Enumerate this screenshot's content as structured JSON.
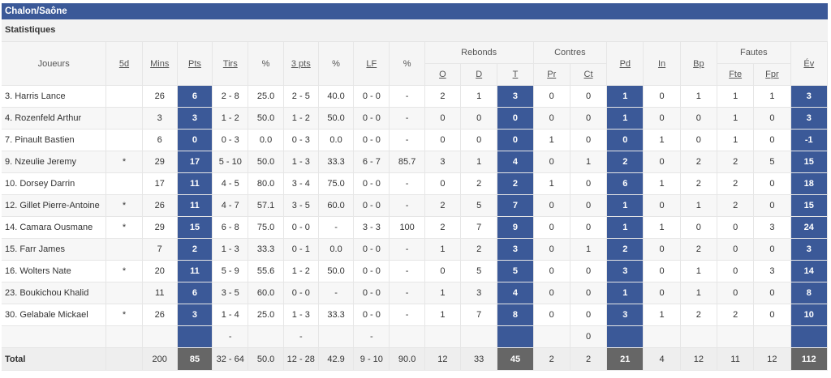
{
  "team": "Chalon/Saône",
  "section": "Statistiques",
  "headers": {
    "joueurs": "Joueurs",
    "5d": "5d",
    "mins": "Mins",
    "pts": "Pts",
    "tirs": "Tirs",
    "pct1": "%",
    "pts3": "3 pts",
    "pct2": "%",
    "lf": "LF",
    "pct3": "%",
    "rebonds": "Rebonds",
    "o": "O",
    "d": "D",
    "t": "T",
    "contres": "Contres",
    "pr": "Pr",
    "ct": "Ct",
    "pd": "Pd",
    "in": "In",
    "bp": "Bp",
    "fautes": "Fautes",
    "fte": "Fte",
    "fpr": "Fpr",
    "ev": "Év"
  },
  "players": [
    [
      "3. Harris Lance",
      "",
      "26",
      "6",
      "2 - 8",
      "25.0",
      "2 - 5",
      "40.0",
      "0 - 0",
      "-",
      "2",
      "1",
      "3",
      "0",
      "0",
      "1",
      "0",
      "1",
      "1",
      "1",
      "3"
    ],
    [
      "4. Rozenfeld Arthur",
      "",
      "3",
      "3",
      "1 - 2",
      "50.0",
      "1 - 2",
      "50.0",
      "0 - 0",
      "-",
      "0",
      "0",
      "0",
      "0",
      "0",
      "1",
      "0",
      "0",
      "1",
      "0",
      "3"
    ],
    [
      "7. Pinault Bastien",
      "",
      "6",
      "0",
      "0 - 3",
      "0.0",
      "0 - 3",
      "0.0",
      "0 - 0",
      "-",
      "0",
      "0",
      "0",
      "1",
      "0",
      "0",
      "1",
      "0",
      "1",
      "0",
      "-1"
    ],
    [
      "9. Nzeulie Jeremy",
      "*",
      "29",
      "17",
      "5 - 10",
      "50.0",
      "1 - 3",
      "33.3",
      "6 - 7",
      "85.7",
      "3",
      "1",
      "4",
      "0",
      "1",
      "2",
      "0",
      "2",
      "2",
      "5",
      "15"
    ],
    [
      "10. Dorsey Darrin",
      "",
      "17",
      "11",
      "4 - 5",
      "80.0",
      "3 - 4",
      "75.0",
      "0 - 0",
      "-",
      "0",
      "2",
      "2",
      "1",
      "0",
      "6",
      "1",
      "2",
      "2",
      "0",
      "18"
    ],
    [
      "12. Gillet Pierre-Antoine",
      "*",
      "26",
      "11",
      "4 - 7",
      "57.1",
      "3 - 5",
      "60.0",
      "0 - 0",
      "-",
      "2",
      "5",
      "7",
      "0",
      "0",
      "1",
      "0",
      "1",
      "2",
      "0",
      "15"
    ],
    [
      "14. Camara Ousmane",
      "*",
      "29",
      "15",
      "6 - 8",
      "75.0",
      "0 - 0",
      "-",
      "3 - 3",
      "100",
      "2",
      "7",
      "9",
      "0",
      "0",
      "1",
      "1",
      "0",
      "0",
      "3",
      "24"
    ],
    [
      "15. Farr James",
      "",
      "7",
      "2",
      "1 - 3",
      "33.3",
      "0 - 1",
      "0.0",
      "0 - 0",
      "-",
      "1",
      "2",
      "3",
      "0",
      "1",
      "2",
      "0",
      "2",
      "0",
      "0",
      "3"
    ],
    [
      "16. Wolters Nate",
      "*",
      "20",
      "11",
      "5 - 9",
      "55.6",
      "1 - 2",
      "50.0",
      "0 - 0",
      "-",
      "0",
      "5",
      "5",
      "0",
      "0",
      "3",
      "0",
      "1",
      "0",
      "3",
      "14"
    ],
    [
      "23. Boukichou Khalid",
      "",
      "11",
      "6",
      "3 - 5",
      "60.0",
      "0 - 0",
      "-",
      "0 - 0",
      "-",
      "1",
      "3",
      "4",
      "0",
      "0",
      "1",
      "0",
      "1",
      "0",
      "0",
      "8"
    ],
    [
      "30. Gelabale Mickael",
      "*",
      "26",
      "3",
      "1 - 4",
      "25.0",
      "1 - 3",
      "33.3",
      "0 - 0",
      "-",
      "1",
      "7",
      "8",
      "0",
      "0",
      "3",
      "1",
      "2",
      "2",
      "0",
      "10"
    ]
  ],
  "team_row": [
    "",
    "",
    "",
    "",
    "-",
    "",
    "-",
    "",
    "-",
    "",
    "",
    "",
    "",
    "",
    "0",
    "",
    "",
    "",
    "",
    "",
    ""
  ],
  "total": [
    "Total",
    "",
    "200",
    "85",
    "32 - 64",
    "50.0",
    "12 - 28",
    "42.9",
    "9 - 10",
    "90.0",
    "12",
    "33",
    "45",
    "2",
    "2",
    "21",
    "4",
    "12",
    "11",
    "12",
    "112"
  ]
}
